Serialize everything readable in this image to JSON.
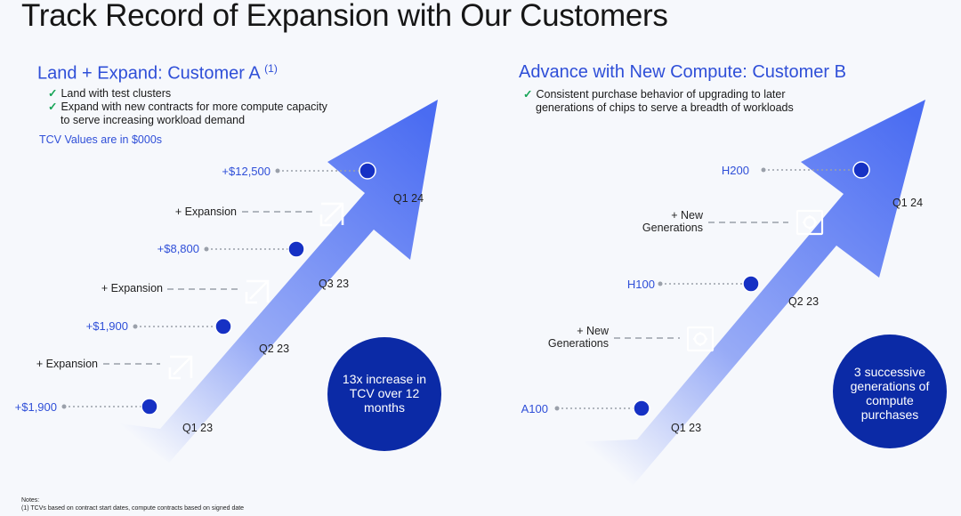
{
  "title": "Track Record of Expansion with Our Customers",
  "left": {
    "heading": "Land + Expand: Customer A",
    "heading_sup": "(1)",
    "bullets": [
      {
        "lines": [
          "Land with test clusters"
        ]
      },
      {
        "lines": [
          "Expand with new contracts for more compute capacity",
          "to serve increasing workload demand"
        ]
      }
    ],
    "tcv_note": "TCV Values are in $000s",
    "values": [
      "+$1,900",
      "+$1,900",
      "+$8,800",
      "+$12,500"
    ],
    "expansion_label": "+ Expansion",
    "quarters": [
      "Q1 23",
      "Q2 23",
      "Q3 23",
      "Q1 24"
    ],
    "circle_text": "13x increase in TCV over 12 months"
  },
  "right": {
    "heading": "Advance with New Compute: Customer B",
    "bullets": [
      {
        "lines": [
          "Consistent purchase behavior of upgrading to later",
          "generations of chips to serve a breadth of workloads"
        ]
      }
    ],
    "chips": [
      "A100",
      "H100",
      "H200"
    ],
    "generations_label": [
      "+ New",
      "Generations"
    ],
    "quarters": [
      "Q1 23",
      "Q2 23",
      "Q1 24"
    ],
    "circle_text": "3 successive generations of compute purchases"
  },
  "notes": {
    "heading": "Notes:",
    "line1": "(1) TCVs based on contract start dates, compute contracts based on signed date"
  },
  "colors": {
    "accent": "#2f4fd8",
    "dark_circle": "#0b2aa6",
    "arrow_tip": "#4a6cf2"
  }
}
